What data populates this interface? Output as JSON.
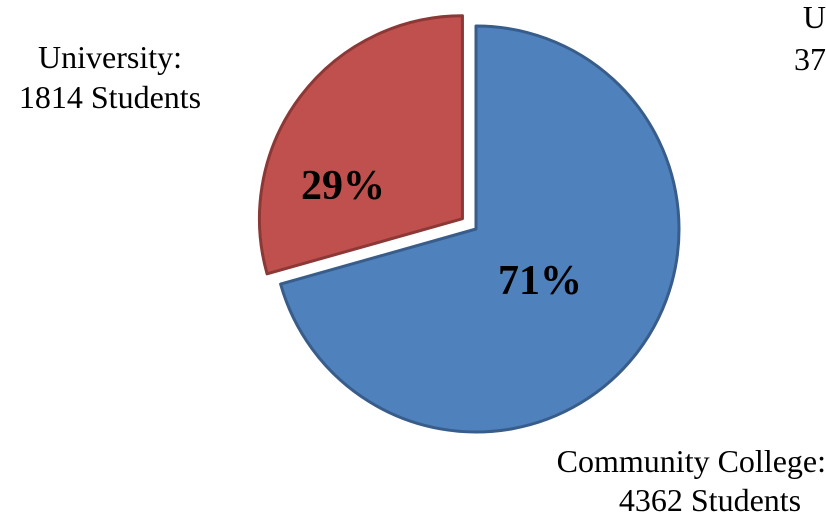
{
  "chart_data": {
    "type": "pie",
    "slices": [
      {
        "category": "Community College",
        "value": 4362,
        "percent_label": "71%",
        "label_lines": [
          "Community College:",
          "4362 Students"
        ],
        "color": "#4f81bd",
        "stroke": "#385d8a",
        "exploded": false
      },
      {
        "category": "University",
        "value": 1814,
        "percent_label": "29%",
        "label_lines": [
          "University:",
          "1814 Students"
        ],
        "color": "#c0504d",
        "stroke": "#8c3836",
        "exploded": true
      }
    ],
    "clipped_label_fragments": [
      "U",
      "37"
    ]
  }
}
